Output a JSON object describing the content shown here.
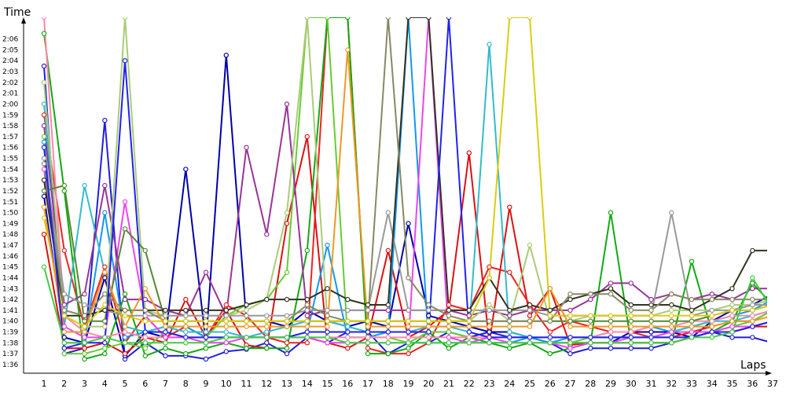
{
  "chart_data": {
    "type": "line",
    "xlabel": "Laps",
    "ylabel": "Time",
    "x": [
      1,
      2,
      3,
      4,
      5,
      6,
      7,
      8,
      9,
      10,
      11,
      12,
      13,
      14,
      15,
      16,
      17,
      18,
      19,
      20,
      21,
      22,
      23,
      24,
      25,
      26,
      27,
      28,
      29,
      30,
      31,
      32,
      33,
      34,
      35,
      36,
      37
    ],
    "y_ticks": [
      "1:36",
      "1:37",
      "1:38",
      "1:39",
      "1:40",
      "1:41",
      "1:42",
      "1:43",
      "1:44",
      "1:45",
      "1:46",
      "1:47",
      "1:48",
      "1:49",
      "1:50",
      "1:51",
      "1:52",
      "1:53",
      "1:54",
      "1:55",
      "1:56",
      "1:57",
      "1:58",
      "1:59",
      "2:00",
      "2:01",
      "2:02",
      "2:03",
      "2:04",
      "2:05",
      "2:06"
    ],
    "ylim_seconds": [
      95.2,
      128
    ],
    "x_axis_position": "bottom",
    "grid": false,
    "legend": "none",
    "series": [
      {
        "color": "#1f1fd6",
        "values": [
          123.5,
          97.0,
          97.5,
          118.5,
          96.5,
          98.0,
          96.8,
          96.8,
          96.5,
          97.2,
          97.4,
          98.0,
          97.0,
          98.5,
          98.0,
          99.0,
          99.0,
          97.0,
          98.0,
          98.0,
          99.0,
          98.5,
          99.0,
          98.5,
          98.5,
          98.0,
          97.0,
          97.5,
          97.5,
          97.5,
          97.5,
          98.0,
          98.5,
          99.0,
          98.5,
          98.5,
          98.0
        ]
      },
      {
        "color": "#0000aa",
        "values": [
          111.5,
          98.5,
          98.0,
          104.0,
          96.8,
          99.0,
          98.5,
          114.0,
          98.0,
          124.5,
          100.0,
          100.0,
          99.5,
          101.0,
          100.0,
          99.5,
          100.0,
          99.5,
          109.0,
          100.5,
          100.0,
          99.5,
          99.0,
          99.0,
          98.5,
          98.0,
          98.0,
          98.0,
          98.0,
          99.0,
          99.0,
          99.0,
          98.5,
          100.0,
          101.0,
          101.5,
          102.5
        ]
      },
      {
        "color": "#dd1111",
        "values": [
          108.0,
          97.5,
          97.5,
          98.0,
          97.0,
          98.5,
          98.0,
          102.0,
          98.5,
          101.0,
          97.8,
          97.5,
          109.0,
          117.0,
          98.0,
          97.5,
          98.5,
          106.5,
          98.5,
          99.5,
          101.0,
          115.5,
          98.0,
          110.5,
          100.5,
          103.0,
          97.8,
          98.0,
          98.0,
          98.0,
          98.0,
          98.0,
          98.5,
          99.0,
          99.0,
          99.5,
          99.5
        ]
      },
      {
        "color": "#ee2222",
        "values": [
          119.0,
          106.5,
          99.5,
          105.0,
          98.0,
          100.5,
          98.5,
          99.5,
          98.5,
          101.5,
          100.5,
          98.5,
          98.0,
          98.0,
          128.0,
          128.0,
          97.5,
          97.0,
          97.0,
          98.0,
          101.5,
          101.0,
          105.0,
          104.5,
          101.5,
          99.0,
          100.0,
          99.5,
          99.0,
          99.0,
          98.5,
          98.5,
          99.0,
          99.5,
          100.0,
          100.0,
          101.0
        ]
      },
      {
        "color": "#11aa11",
        "values": [
          126.5,
          112.0,
          96.5,
          97.0,
          102.5,
          96.8,
          97.5,
          97.0,
          97.5,
          98.0,
          97.5,
          97.5,
          97.5,
          106.5,
          128.0,
          128.0,
          97.0,
          97.0,
          97.5,
          99.0,
          97.5,
          98.5,
          98.0,
          97.5,
          98.0,
          97.0,
          97.5,
          98.0,
          110.0,
          98.0,
          98.0,
          98.0,
          105.5,
          99.0,
          100.0,
          103.5,
          101.5
        ]
      },
      {
        "color": "#66cc33",
        "values": [
          117.0,
          97.0,
          97.0,
          97.5,
          98.0,
          97.5,
          99.0,
          98.5,
          98.5,
          100.5,
          101.5,
          102.0,
          104.5,
          128.0,
          128.0,
          98.5,
          98.5,
          98.5,
          98.0,
          99.0,
          99.0,
          98.5,
          98.5,
          98.5,
          98.5,
          98.0,
          98.0,
          98.5,
          98.5,
          98.5,
          98.5,
          98.5,
          98.5,
          99.0,
          99.5,
          100.0,
          101.0
        ]
      },
      {
        "color": "#1199ee",
        "values": [
          116.5,
          98.0,
          98.0,
          110.0,
          98.5,
          99.0,
          99.5,
          99.5,
          98.5,
          98.5,
          98.5,
          98.5,
          98.5,
          99.0,
          107.0,
          98.5,
          98.5,
          99.0,
          128.0,
          98.0,
          98.0,
          98.0,
          98.0,
          98.0,
          98.5,
          98.0,
          98.5,
          98.5,
          99.0,
          99.0,
          99.5,
          99.0,
          99.5,
          100.0,
          100.5,
          101.0,
          102.0
        ]
      },
      {
        "color": "#33bbcc",
        "values": [
          120.0,
          99.5,
          112.5,
          104.5,
          99.5,
          99.0,
          99.5,
          99.0,
          99.0,
          99.0,
          98.5,
          99.0,
          99.5,
          100.0,
          100.0,
          99.5,
          99.0,
          99.0,
          99.0,
          99.5,
          99.5,
          99.0,
          125.5,
          99.0,
          98.5,
          98.5,
          98.5,
          98.5,
          98.5,
          98.5,
          98.5,
          99.0,
          99.5,
          100.0,
          100.0,
          100.5,
          101.0
        ]
      },
      {
        "color": "#ff88aa",
        "values": [
          128.0,
          100.5,
          99.0,
          98.5,
          99.0,
          98.5,
          98.5,
          98.5,
          98.5,
          98.5,
          98.5,
          98.5,
          98.5,
          98.5,
          98.5,
          98.5,
          98.5,
          98.5,
          98.5,
          98.5,
          98.5,
          98.5,
          98.5,
          98.5,
          98.5,
          98.5,
          98.5,
          98.5,
          99.0,
          99.0,
          99.5,
          99.5,
          100.0,
          100.0,
          100.5,
          100.5,
          101.0
        ]
      },
      {
        "color": "#ee44ee",
        "values": [
          114.0,
          99.5,
          98.5,
          98.5,
          111.0,
          100.5,
          98.5,
          98.5,
          98.0,
          98.0,
          98.5,
          98.5,
          98.5,
          98.5,
          98.0,
          98.0,
          98.0,
          98.0,
          98.0,
          128.0,
          98.5,
          98.0,
          98.5,
          98.0,
          98.0,
          98.0,
          97.5,
          98.0,
          98.0,
          98.5,
          98.5,
          99.0,
          99.0,
          99.0,
          99.5,
          99.5,
          100.0
        ]
      },
      {
        "color": "#993399",
        "values": [
          118.0,
          101.5,
          102.5,
          112.5,
          102.0,
          102.0,
          101.0,
          100.5,
          104.5,
          100.5,
          116.0,
          108.0,
          120.0,
          100.5,
          101.0,
          101.0,
          101.0,
          101.0,
          101.0,
          101.0,
          101.0,
          100.5,
          101.0,
          100.5,
          101.0,
          101.0,
          101.0,
          102.0,
          103.5,
          103.5,
          102.0,
          102.5,
          102.0,
          102.5,
          102.0,
          103.0,
          103.0
        ]
      },
      {
        "color": "#aacc77",
        "values": [
          122.0,
          100.5,
          99.5,
          99.5,
          128.0,
          101.0,
          100.5,
          100.5,
          100.5,
          100.5,
          101.0,
          102.0,
          110.0,
          128.0,
          100.0,
          100.0,
          100.0,
          100.0,
          100.0,
          100.0,
          100.0,
          100.0,
          101.5,
          100.0,
          107.0,
          100.0,
          100.0,
          100.5,
          100.5,
          100.5,
          100.5,
          101.0,
          101.0,
          101.0,
          101.5,
          101.5,
          102.0
        ]
      },
      {
        "color": "#558833",
        "values": [
          112.0,
          112.5,
          100.0,
          100.0,
          108.5,
          106.5,
          100.0,
          100.0,
          100.0,
          100.0,
          100.0,
          100.0,
          100.0,
          100.0,
          100.0,
          100.0,
          100.0,
          100.0,
          100.0,
          100.0,
          100.0,
          100.0,
          100.0,
          100.0,
          100.0,
          100.0,
          100.0,
          100.0,
          100.0,
          100.0,
          100.0,
          100.0,
          100.0,
          100.5,
          101.0,
          101.0,
          101.5
        ]
      },
      {
        "color": "#999999",
        "values": [
          115.0,
          102.5,
          101.5,
          101.0,
          100.5,
          100.5,
          100.5,
          100.5,
          100.5,
          100.5,
          100.5,
          100.5,
          100.5,
          101.0,
          101.0,
          101.0,
          101.0,
          110.0,
          101.0,
          101.0,
          101.0,
          101.0,
          101.0,
          101.0,
          101.0,
          100.5,
          100.5,
          100.5,
          100.5,
          100.5,
          100.5,
          110.0,
          100.5,
          101.0,
          101.0,
          101.5,
          101.5
        ]
      },
      {
        "color": "#333322",
        "values": [
          113.0,
          100.5,
          100.5,
          101.0,
          101.0,
          101.0,
          101.0,
          101.0,
          101.0,
          101.0,
          101.5,
          102.0,
          102.0,
          102.0,
          103.0,
          102.0,
          101.5,
          101.5,
          128.0,
          128.0,
          101.0,
          101.0,
          104.0,
          101.0,
          101.5,
          101.0,
          102.0,
          102.5,
          103.0,
          101.5,
          101.5,
          101.5,
          101.0,
          102.0,
          103.0,
          106.5,
          106.5
        ]
      },
      {
        "color": "#888866",
        "values": [
          114.5,
          101.0,
          100.5,
          102.5,
          101.0,
          101.0,
          100.0,
          100.0,
          100.0,
          100.0,
          100.0,
          100.0,
          100.0,
          101.5,
          100.5,
          100.0,
          100.0,
          128.0,
          104.0,
          101.5,
          100.5,
          100.0,
          100.0,
          100.0,
          100.0,
          100.0,
          102.5,
          102.5,
          102.5,
          101.0,
          101.0,
          102.5,
          102.0,
          102.0,
          102.0,
          102.0,
          102.0
        ]
      },
      {
        "color": "#ddcc11",
        "values": [
          109.5,
          100.5,
          99.5,
          101.5,
          100.5,
          100.0,
          100.0,
          100.0,
          100.0,
          100.0,
          100.0,
          100.0,
          100.0,
          100.0,
          100.0,
          100.0,
          100.0,
          100.0,
          100.0,
          100.0,
          100.0,
          100.0,
          104.0,
          128.0,
          128.0,
          100.5,
          100.5,
          100.5,
          100.5,
          100.5,
          100.5,
          100.5,
          100.5,
          100.5,
          101.0,
          101.0,
          101.5
        ]
      },
      {
        "color": "#ee9922",
        "values": [
          110.5,
          99.0,
          99.0,
          104.5,
          99.5,
          103.0,
          99.5,
          99.5,
          99.5,
          99.5,
          99.5,
          99.5,
          99.5,
          99.5,
          99.5,
          125.0,
          99.5,
          99.5,
          99.5,
          99.5,
          99.5,
          99.5,
          99.5,
          99.5,
          99.5,
          103.0,
          99.5,
          99.5,
          99.5,
          99.5,
          99.5,
          99.5,
          99.5,
          99.5,
          100.0,
          100.0,
          100.5
        ]
      },
      {
        "color": "#2222ee",
        "values": [
          116.0,
          97.5,
          98.0,
          98.0,
          124.0,
          99.0,
          99.0,
          98.5,
          98.5,
          98.5,
          98.5,
          98.5,
          98.5,
          99.0,
          99.0,
          99.0,
          99.0,
          99.0,
          99.0,
          99.0,
          128.0,
          99.0,
          98.5,
          98.5,
          98.5,
          98.5,
          98.5,
          98.5,
          98.5,
          98.5,
          98.5,
          98.5,
          98.5,
          99.0,
          99.0,
          99.5,
          100.0
        ]
      },
      {
        "color": "#44cc44",
        "values": [
          105.0,
          98.0,
          98.0,
          98.5,
          98.0,
          98.0,
          98.0,
          98.0,
          98.0,
          98.5,
          98.5,
          98.5,
          98.5,
          98.5,
          98.5,
          98.0,
          98.0,
          98.0,
          98.0,
          98.0,
          98.0,
          98.0,
          98.0,
          98.0,
          98.0,
          98.0,
          98.0,
          98.0,
          98.0,
          98.0,
          98.0,
          98.0,
          98.5,
          98.5,
          99.0,
          104.0,
          101.0
        ]
      }
    ]
  }
}
